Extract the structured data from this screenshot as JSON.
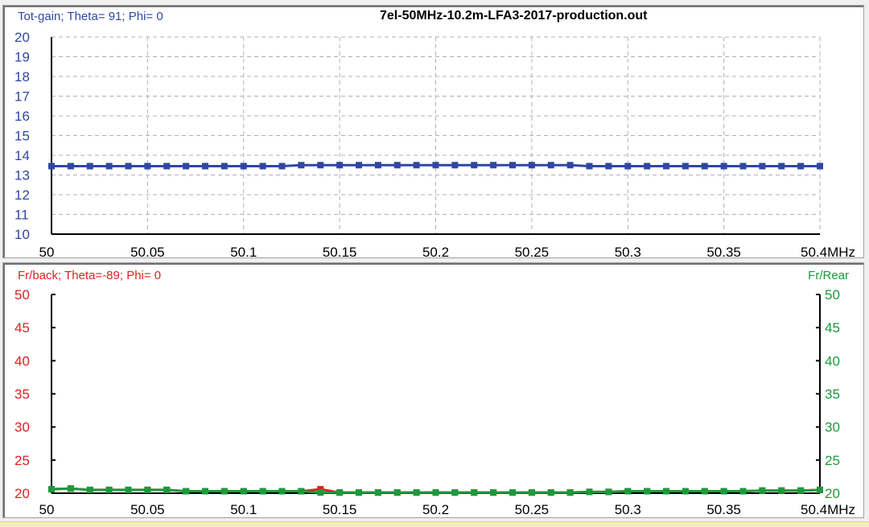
{
  "window": {
    "file_title": "7el-50MHz-10.2m-LFA3-2017-production.out"
  },
  "colors": {
    "gain": "#2f47a3",
    "fb": "#e02020",
    "fr": "#1a9a3c",
    "grid": "#b0b0b0",
    "axis": "#000000"
  },
  "chart_data": [
    {
      "type": "line",
      "title": "Tot-gain; Theta= 91; Phi= 0",
      "file_title": "7el-50MHz-10.2m-LFA3-2017-production.out",
      "xlabel": "MHz",
      "ylabel": "Tot-gain",
      "xlim": [
        50,
        50.4
      ],
      "ylim": [
        10,
        20
      ],
      "grid": true,
      "x_ticks": [
        "50",
        "50.05",
        "50.1",
        "50.15",
        "50.2",
        "50.25",
        "50.3",
        "50.35",
        "50.4MHz"
      ],
      "y_ticks": [
        "10",
        "11",
        "12",
        "13",
        "14",
        "15",
        "16",
        "17",
        "18",
        "19",
        "20"
      ],
      "x": [
        50.0,
        50.01,
        50.02,
        50.03,
        50.04,
        50.05,
        50.06,
        50.07,
        50.08,
        50.09,
        50.1,
        50.11,
        50.12,
        50.13,
        50.14,
        50.15,
        50.16,
        50.17,
        50.18,
        50.19,
        50.2,
        50.21,
        50.22,
        50.23,
        50.24,
        50.25,
        50.26,
        50.27,
        50.28,
        50.29,
        50.3,
        50.31,
        50.32,
        50.33,
        50.34,
        50.35,
        50.36,
        50.37,
        50.38,
        50.39,
        50.4
      ],
      "series": [
        {
          "name": "Tot-gain",
          "color": "#2f47a3",
          "values": [
            13.45,
            13.45,
            13.45,
            13.45,
            13.45,
            13.45,
            13.45,
            13.45,
            13.45,
            13.45,
            13.45,
            13.45,
            13.45,
            13.5,
            13.5,
            13.5,
            13.5,
            13.5,
            13.5,
            13.5,
            13.5,
            13.5,
            13.5,
            13.5,
            13.5,
            13.5,
            13.5,
            13.5,
            13.45,
            13.45,
            13.45,
            13.45,
            13.45,
            13.45,
            13.45,
            13.45,
            13.45,
            13.45,
            13.45,
            13.45,
            13.45
          ]
        }
      ]
    },
    {
      "type": "line",
      "title": "Fr/back; Theta=-89; Phi= 0",
      "right_axis_title": "Fr/Rear",
      "xlabel": "MHz",
      "ylabel": "Fr/back",
      "ylabel_right": "Fr/Rear",
      "xlim": [
        50,
        50.4
      ],
      "ylim": [
        20,
        50
      ],
      "ylim_right": [
        20,
        50
      ],
      "grid": false,
      "x_ticks": [
        "50",
        "50.05",
        "50.1",
        "50.15",
        "50.2",
        "50.25",
        "50.3",
        "50.35",
        "50.4MHz"
      ],
      "y_ticks": [
        "20",
        "25",
        "30",
        "35",
        "40",
        "45",
        "50"
      ],
      "y_ticks_right": [
        "20",
        "25",
        "30",
        "35",
        "40",
        "45",
        "50"
      ],
      "x": [
        50.0,
        50.01,
        50.02,
        50.03,
        50.04,
        50.05,
        50.06,
        50.07,
        50.08,
        50.09,
        50.1,
        50.11,
        50.12,
        50.13,
        50.14,
        50.15,
        50.16,
        50.17,
        50.18,
        50.19,
        50.2,
        50.21,
        50.22,
        50.23,
        50.24,
        50.25,
        50.26,
        50.27,
        50.28,
        50.29,
        50.3,
        50.31,
        50.32,
        50.33,
        50.34,
        50.35,
        50.36,
        50.37,
        50.38,
        50.39,
        50.4
      ],
      "series": [
        {
          "name": "Fr/back",
          "color": "#e02020",
          "values": [
            20.6,
            20.7,
            20.5,
            20.5,
            20.5,
            20.5,
            20.5,
            20.3,
            20.3,
            20.3,
            20.3,
            20.3,
            20.3,
            20.3,
            20.6,
            20.1,
            20.1,
            20.1,
            20.1,
            20.1,
            20.1,
            20.1,
            20.1,
            20.1,
            20.1,
            20.1,
            20.1,
            20.1,
            20.2,
            20.2,
            20.3,
            20.3,
            20.3,
            20.3,
            20.3,
            20.3,
            20.3,
            20.4,
            20.4,
            20.4,
            20.5
          ]
        },
        {
          "name": "Fr/Rear",
          "color": "#1a9a3c",
          "values": [
            20.6,
            20.7,
            20.5,
            20.5,
            20.5,
            20.5,
            20.5,
            20.3,
            20.3,
            20.3,
            20.3,
            20.3,
            20.3,
            20.3,
            20.1,
            20.1,
            20.1,
            20.1,
            20.1,
            20.1,
            20.1,
            20.1,
            20.1,
            20.1,
            20.1,
            20.1,
            20.1,
            20.1,
            20.2,
            20.2,
            20.3,
            20.3,
            20.3,
            20.3,
            20.3,
            20.3,
            20.3,
            20.4,
            20.4,
            20.4,
            20.5
          ]
        }
      ]
    }
  ]
}
